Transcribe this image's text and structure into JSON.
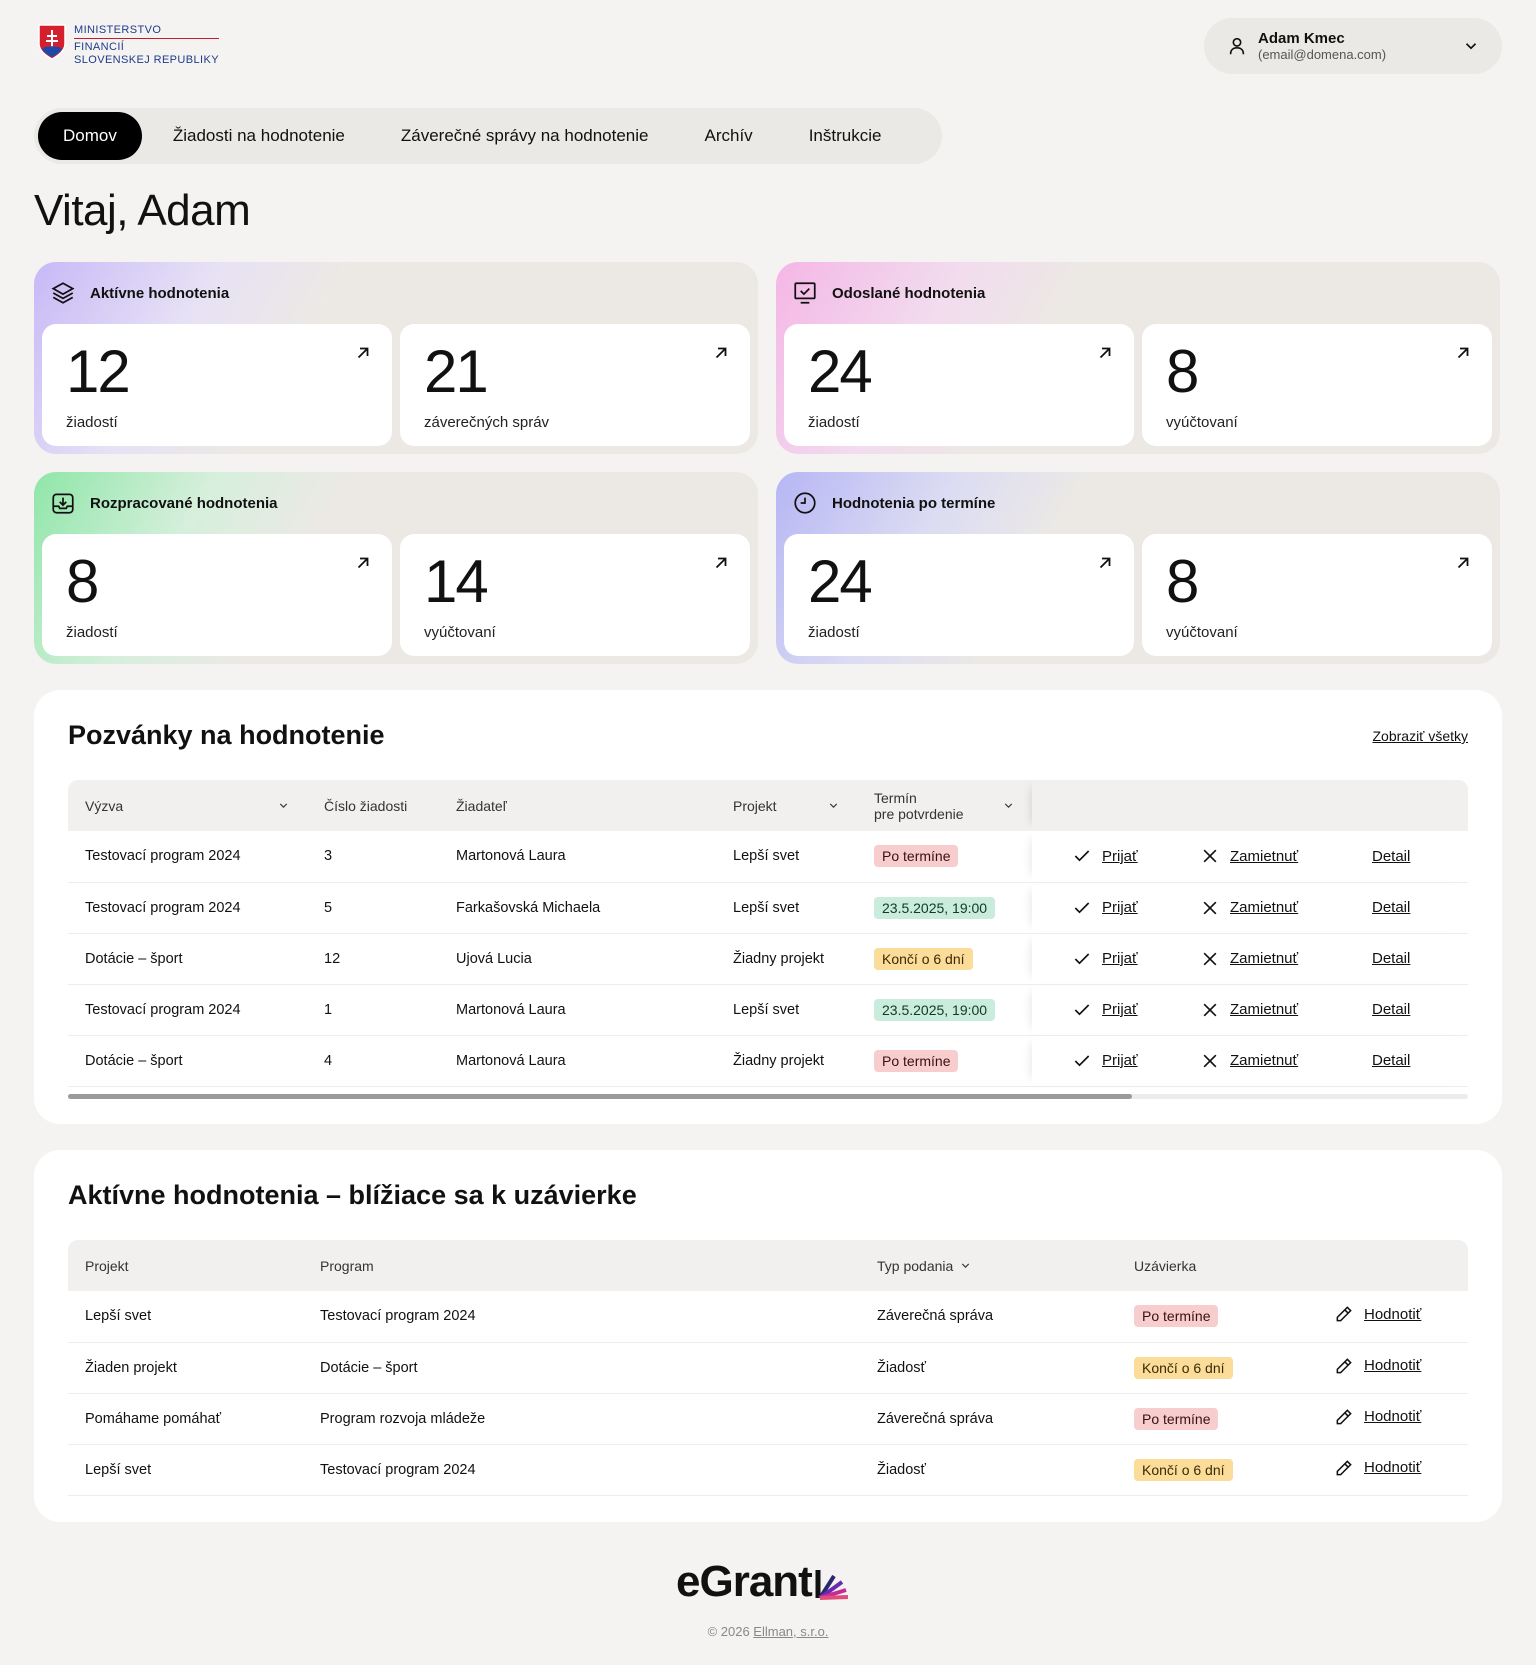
{
  "header": {
    "ministry_lines": [
      "MINISTERSTVO",
      "FINANCIÍ",
      "SLOVENSKEJ REPUBLIKY"
    ],
    "user_name": "Adam Kmec",
    "user_email": "(email@domena.com)"
  },
  "nav": {
    "tabs": [
      {
        "label": "Domov",
        "active": true
      },
      {
        "label": "Žiadosti na hodnotenie",
        "active": false
      },
      {
        "label": "Záverečné správy na hodnotenie",
        "active": false
      },
      {
        "label": "Archív",
        "active": false
      },
      {
        "label": "Inštrukcie",
        "active": false
      }
    ]
  },
  "greeting": "Vitaj, Adam",
  "stats": [
    {
      "title": "Aktívne hodnotenia",
      "icon": "layers-icon",
      "cards": [
        {
          "value": "12",
          "label": "žiadostí"
        },
        {
          "value": "21",
          "label": "záverečných správ"
        }
      ]
    },
    {
      "title": "Odoslané hodnotenia",
      "icon": "monitor-check-icon",
      "cards": [
        {
          "value": "24",
          "label": "žiadostí"
        },
        {
          "value": "8",
          "label": "vyúčtovaní"
        }
      ]
    },
    {
      "title": "Rozpracované hodnotenia",
      "icon": "inbox-download-icon",
      "cards": [
        {
          "value": "8",
          "label": "žiadostí"
        },
        {
          "value": "14",
          "label": "vyúčtovaní"
        }
      ]
    },
    {
      "title": "Hodnotenia po termíne",
      "icon": "clock-icon",
      "cards": [
        {
          "value": "24",
          "label": "žiadostí"
        },
        {
          "value": "8",
          "label": "vyúčtovaní"
        }
      ]
    }
  ],
  "invitations": {
    "title": "Pozvánky na hodnotenie",
    "view_all": "Zobraziť všetky",
    "columns": [
      "Výzva",
      "Číslo žiadosti",
      "Žiadateľ",
      "Projekt",
      "Termín",
      "pre potvrdenie"
    ],
    "actions": {
      "accept": "Prijať",
      "reject": "Zamietnuť",
      "detail": "Detail"
    },
    "rows": [
      {
        "call": "Testovací program 2024",
        "number": "3",
        "applicant": "Martonová Laura",
        "project": "Lepší svet",
        "deadline": "Po termíne",
        "status": "red"
      },
      {
        "call": "Testovací program 2024",
        "number": "5",
        "applicant": "Farkašovská Michaela",
        "project": "Lepší svet",
        "deadline": "23.5.2025, 19:00",
        "status": "green"
      },
      {
        "call": "Dotácie – šport",
        "number": "12",
        "applicant": "Ujová Lucia",
        "project": "Žiadny projekt",
        "deadline": "Končí o 6 dní",
        "status": "yellow"
      },
      {
        "call": "Testovací program 2024",
        "number": "1",
        "applicant": "Martonová Laura",
        "project": "Lepší svet",
        "deadline": "23.5.2025, 19:00",
        "status": "green"
      },
      {
        "call": "Dotácie – šport",
        "number": "4",
        "applicant": "Martonová Laura",
        "project": "Žiadny projekt",
        "deadline": "Po termíne",
        "status": "red"
      }
    ]
  },
  "active": {
    "title": "Aktívne hodnotenia – blížiace sa k uzávierke",
    "columns": [
      "Projekt",
      "Program",
      "Typ podania",
      "Uzávierka"
    ],
    "action": "Hodnotiť",
    "rows": [
      {
        "project": "Lepší svet",
        "program": "Testovací program 2024",
        "type": "Záverečná správa",
        "deadline": "Po termíne",
        "status": "red"
      },
      {
        "project": "Žiaden projekt",
        "program": "Dotácie – šport",
        "type": "Žiadosť",
        "deadline": "Končí o 6 dní",
        "status": "yellow"
      },
      {
        "project": "Pomáhame pomáhať",
        "program": "Program rozvoja mládeže",
        "type": "Záverečná správa",
        "deadline": "Po termíne",
        "status": "red"
      },
      {
        "project": "Lepší svet",
        "program": "Testovací program 2024",
        "type": "Žiadosť",
        "deadline": "Končí o 6 dní",
        "status": "yellow"
      }
    ]
  },
  "footer": {
    "brand": "eGrant",
    "copyright_prefix": "© 2026 ",
    "copyright_link": "Ellman, s.r.o."
  },
  "colors": {
    "accent": "#000000",
    "badge_red": "#f8cdcd",
    "badge_green": "#c9ecdc",
    "badge_yellow": "#fbdc98",
    "scroll_progress": 0.76
  }
}
